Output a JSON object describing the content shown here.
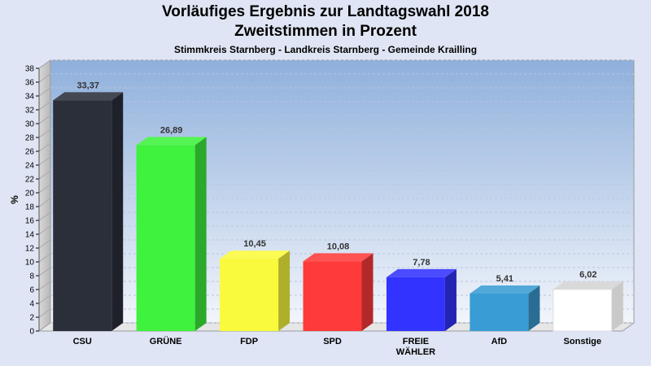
{
  "chart_data": {
    "type": "bar",
    "title": "Vorläufiges Ergebnis zur Landtagswahl 2018",
    "subtitle": "Zweitstimmen in Prozent",
    "subsubtitle": "Stimmkreis Starnberg - Landkreis Starnberg - Gemeinde Krailling",
    "ylabel": "%",
    "ylim": [
      0,
      38
    ],
    "ytick_step": 2,
    "grid": true,
    "categories": [
      "CSU",
      "GRÜNE",
      "FDP",
      "SPD",
      "FREIE WÄHLER",
      "AfD",
      "Sonstige"
    ],
    "category_lines": [
      [
        "CSU"
      ],
      [
        "GRÜNE"
      ],
      [
        "FDP"
      ],
      [
        "SPD"
      ],
      [
        "FREIE",
        "WÄHLER"
      ],
      [
        "AfD"
      ],
      [
        "Sonstige"
      ]
    ],
    "values": [
      33.37,
      26.89,
      10.45,
      10.08,
      7.78,
      5.41,
      6.02
    ],
    "value_labels": [
      "33,37",
      "26,89",
      "10,45",
      "10,08",
      "7,78",
      "5,41",
      "6,02"
    ],
    "colors": [
      "#2b2f3a",
      "#3ef23e",
      "#fafa3c",
      "#ff3a3a",
      "#3333ff",
      "#3a9cd4",
      "#ffffff"
    ]
  }
}
